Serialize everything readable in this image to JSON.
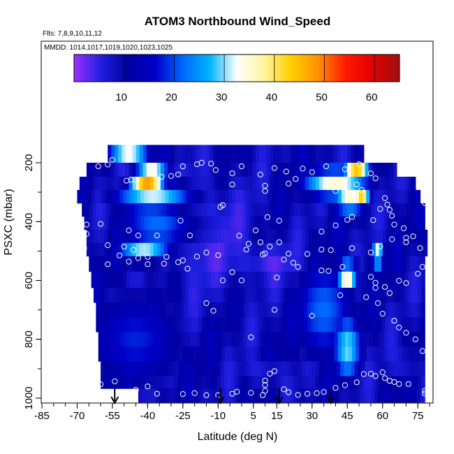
{
  "chart_data": {
    "type": "heatmap",
    "title": "ATOM3 Northbound Wind_Speed",
    "subtitle_flights": "Flts: 7,8,9,10,11,12",
    "subtitle_dates": "MMDD: 1014,1017,1019,1020,1023,1025",
    "xlabel": "Latitude (deg N)",
    "ylabel": "PSXC (mbar)",
    "xlim": [
      -85,
      80
    ],
    "ylim": [
      1000,
      0
    ],
    "x_ticks": [
      -85,
      -70,
      -55,
      -40,
      -25,
      -10,
      5,
      15,
      30,
      45,
      60,
      75
    ],
    "y_ticks": [
      200,
      400,
      600,
      800,
      1000
    ],
    "colorbar": {
      "min": 0,
      "max": 65,
      "ticks": [
        10,
        20,
        30,
        40,
        50,
        60
      ],
      "colors": [
        "#9b30ff",
        "#1f1fe0",
        "#0000a0",
        "#0000c8",
        "#0066ff",
        "#00b4ff",
        "#ffffff",
        "#fff4a0",
        "#ffd000",
        "#ff9000",
        "#ff1a00",
        "#e00000",
        "#a01010"
      ]
    },
    "layers": [
      {
        "p": 175,
        "lat_min": -57,
        "lat_max": 52
      },
      {
        "p": 225,
        "lat_min": -66,
        "lat_max": 66
      },
      {
        "p": 270,
        "lat_min": -69,
        "lat_max": 74
      },
      {
        "p": 315,
        "lat_min": -70,
        "lat_max": 76
      },
      {
        "p": 360,
        "lat_min": -68,
        "lat_max": 78
      },
      {
        "p": 405,
        "lat_min": -67,
        "lat_max": 78
      },
      {
        "p": 450,
        "lat_min": -66,
        "lat_max": 79
      },
      {
        "p": 495,
        "lat_min": -66,
        "lat_max": 79
      },
      {
        "p": 540,
        "lat_min": -65,
        "lat_max": 78
      },
      {
        "p": 600,
        "lat_min": -64,
        "lat_max": 78
      },
      {
        "p": 650,
        "lat_min": -63,
        "lat_max": 78
      },
      {
        "p": 700,
        "lat_min": -62,
        "lat_max": 78
      },
      {
        "p": 750,
        "lat_min": -62,
        "lat_max": 78
      },
      {
        "p": 800,
        "lat_min": -61,
        "lat_max": 78
      },
      {
        "p": 850,
        "lat_min": -61,
        "lat_max": 78
      },
      {
        "p": 900,
        "lat_min": -60,
        "lat_max": 78
      },
      {
        "p": 950,
        "lat_min": -60,
        "lat_max": 78
      },
      {
        "p": 985,
        "lat_min": -44,
        "lat_max": 78
      }
    ],
    "jets": [
      {
        "lat": -40,
        "p": 285,
        "speed": 58,
        "lat_width": 8,
        "p_width": 40
      },
      {
        "lat": -38,
        "p": 240,
        "speed": 45,
        "lat_width": 8,
        "p_width": 30
      },
      {
        "lat": -48,
        "p": 185,
        "speed": 42,
        "lat_width": 10,
        "p_width": 20
      },
      {
        "lat": -35,
        "p": 320,
        "speed": 36,
        "lat_width": 20,
        "p_width": 60
      },
      {
        "lat": -30,
        "p": 420,
        "speed": 30,
        "lat_width": 22,
        "p_width": 90
      },
      {
        "lat": -40,
        "p": 500,
        "speed": 35,
        "lat_width": 14,
        "p_width": 40
      },
      {
        "lat": 49,
        "p": 240,
        "speed": 57,
        "lat_width": 6,
        "p_width": 30
      },
      {
        "lat": 51,
        "p": 300,
        "speed": 55,
        "lat_width": 4,
        "p_width": 30
      },
      {
        "lat": 46,
        "p": 330,
        "speed": 40,
        "lat_width": 8,
        "p_width": 40
      },
      {
        "lat": 45,
        "p": 580,
        "speed": 42,
        "lat_width": 5,
        "p_width": 50
      },
      {
        "lat": 58,
        "p": 515,
        "speed": 50,
        "lat_width": 3,
        "p_width": 30
      },
      {
        "lat": 40,
        "p": 270,
        "speed": 35,
        "lat_width": 16,
        "p_width": 60
      },
      {
        "lat": 45,
        "p": 830,
        "speed": 30,
        "lat_width": 7,
        "p_width": 130
      },
      {
        "lat": -45,
        "p": 800,
        "speed": 18,
        "lat_width": 25,
        "p_width": 200
      },
      {
        "lat": 35,
        "p": 700,
        "speed": 22,
        "lat_width": 15,
        "p_width": 200
      }
    ],
    "calm_zones": [
      {
        "lat": 12,
        "p": 540,
        "lat_width": 12,
        "p_width": 60
      },
      {
        "lat": 70,
        "p": 880,
        "lat_width": 6,
        "p_width": 40
      },
      {
        "lat": 10,
        "p": 920,
        "lat_width": 8,
        "p_width": 40
      },
      {
        "lat": -15,
        "p": 450,
        "lat_width": 20,
        "p_width": 200
      }
    ],
    "observations": [
      [
        -57,
        206
      ],
      [
        -61,
        212
      ],
      [
        -55,
        190
      ],
      [
        -49,
        261
      ],
      [
        -47,
        258
      ],
      [
        -45,
        258
      ],
      [
        -38,
        210
      ],
      [
        -34,
        248
      ],
      [
        -30,
        245
      ],
      [
        -27,
        240
      ],
      [
        -25,
        212
      ],
      [
        -19,
        205
      ],
      [
        -17,
        200
      ],
      [
        -13,
        203
      ],
      [
        -11,
        225
      ],
      [
        -4,
        236
      ],
      [
        0,
        212
      ],
      [
        8,
        240
      ],
      [
        14,
        218
      ],
      [
        19,
        230
      ],
      [
        26,
        220
      ],
      [
        30,
        232
      ],
      [
        36,
        212
      ],
      [
        44,
        222
      ],
      [
        50,
        205
      ],
      [
        55,
        236
      ],
      [
        57,
        253
      ],
      [
        -79,
        334
      ],
      [
        -73,
        430
      ],
      [
        -70,
        400
      ],
      [
        -66,
        410
      ],
      [
        -60,
        408
      ],
      [
        -48,
        430
      ],
      [
        -44,
        447
      ],
      [
        -36,
        447
      ],
      [
        -26,
        397
      ],
      [
        -22,
        447
      ],
      [
        -9,
        350
      ],
      [
        -8,
        344
      ],
      [
        -4,
        274
      ],
      [
        -1,
        448
      ],
      [
        6,
        430
      ],
      [
        10,
        278
      ],
      [
        10,
        296
      ],
      [
        11,
        385
      ],
      [
        16,
        397
      ],
      [
        20,
        271
      ],
      [
        23,
        255
      ],
      [
        34,
        434
      ],
      [
        40,
        413
      ],
      [
        40,
        296
      ],
      [
        45,
        394
      ],
      [
        47,
        384
      ],
      [
        49,
        274
      ],
      [
        51,
        292
      ],
      [
        56,
        395
      ],
      [
        59,
        357
      ],
      [
        61,
        320
      ],
      [
        62,
        342
      ],
      [
        63,
        360
      ],
      [
        64,
        380
      ],
      [
        65,
        410
      ],
      [
        69,
        423
      ],
      [
        70,
        455
      ],
      [
        73,
        450
      ],
      [
        78,
        337
      ],
      [
        78,
        284
      ],
      [
        -76,
        384
      ],
      [
        -73,
        414
      ],
      [
        -71,
        358
      ],
      [
        -66,
        442
      ],
      [
        -57,
        545
      ],
      [
        -52,
        515
      ],
      [
        -48,
        536
      ],
      [
        -44,
        524
      ],
      [
        -40,
        545
      ],
      [
        -32,
        520
      ],
      [
        -25,
        532
      ],
      [
        -23,
        560
      ],
      [
        -10,
        514
      ],
      [
        -8,
        600
      ],
      [
        -4,
        572
      ],
      [
        0,
        600
      ],
      [
        2,
        495
      ],
      [
        9,
        512
      ],
      [
        10,
        508
      ],
      [
        15,
        590
      ],
      [
        18,
        529
      ],
      [
        20,
        509
      ],
      [
        24,
        554
      ],
      [
        34,
        566
      ],
      [
        37,
        568
      ],
      [
        43,
        554
      ],
      [
        45,
        590
      ],
      [
        55,
        588
      ],
      [
        57,
        608
      ],
      [
        57,
        625
      ],
      [
        61,
        622
      ],
      [
        63,
        643
      ],
      [
        67,
        601
      ],
      [
        70,
        609
      ],
      [
        75,
        577
      ],
      [
        77,
        554
      ],
      [
        -82,
        360
      ],
      [
        -79,
        340
      ],
      [
        -73,
        472
      ],
      [
        -67,
        490
      ],
      [
        -57,
        480
      ],
      [
        -50,
        485
      ],
      [
        -46,
        496
      ],
      [
        -40,
        520
      ],
      [
        -33,
        543
      ],
      [
        -27,
        538
      ],
      [
        -19,
        519
      ],
      [
        -15,
        505
      ],
      [
        3,
        475
      ],
      [
        8,
        470
      ],
      [
        12,
        485
      ],
      [
        16,
        470
      ],
      [
        22,
        540
      ],
      [
        28,
        510
      ],
      [
        34,
        495
      ],
      [
        38,
        497
      ],
      [
        47,
        490
      ],
      [
        55,
        505
      ],
      [
        59,
        484
      ],
      [
        64,
        460
      ],
      [
        70,
        470
      ],
      [
        76,
        490
      ],
      [
        -15,
        677
      ],
      [
        -12,
        703
      ],
      [
        4,
        793
      ],
      [
        14,
        700
      ],
      [
        30,
        720
      ],
      [
        42,
        650
      ],
      [
        53,
        657
      ],
      [
        58,
        677
      ],
      [
        60,
        713
      ],
      [
        65,
        737
      ],
      [
        67,
        760
      ],
      [
        70,
        778
      ],
      [
        74,
        800
      ],
      [
        77,
        840
      ],
      [
        -77,
        950
      ],
      [
        -73,
        955
      ],
      [
        -60,
        953
      ],
      [
        -54,
        943
      ],
      [
        -45,
        972
      ],
      [
        -40,
        960
      ],
      [
        -36,
        985
      ],
      [
        -25,
        986
      ],
      [
        -20,
        983
      ],
      [
        -15,
        990
      ],
      [
        -10,
        990
      ],
      [
        -4,
        985
      ],
      [
        -2,
        978
      ],
      [
        4,
        982
      ],
      [
        9,
        990
      ],
      [
        10,
        975
      ],
      [
        10,
        955
      ],
      [
        10,
        940
      ],
      [
        12,
        917
      ],
      [
        14,
        908
      ],
      [
        18,
        970
      ],
      [
        20,
        980
      ],
      [
        24,
        989
      ],
      [
        28,
        985
      ],
      [
        32,
        983
      ],
      [
        35,
        979
      ],
      [
        40,
        965
      ],
      [
        44,
        956
      ],
      [
        49,
        946
      ],
      [
        52,
        918
      ],
      [
        55,
        917
      ],
      [
        57,
        925
      ],
      [
        60,
        912
      ],
      [
        61,
        932
      ],
      [
        63,
        941
      ],
      [
        65,
        945
      ],
      [
        67,
        952
      ],
      [
        71,
        952
      ],
      [
        78,
        984
      ],
      [
        78,
        975
      ]
    ],
    "arrows_lat": [
      -54,
      -9,
      16,
      38
    ]
  }
}
